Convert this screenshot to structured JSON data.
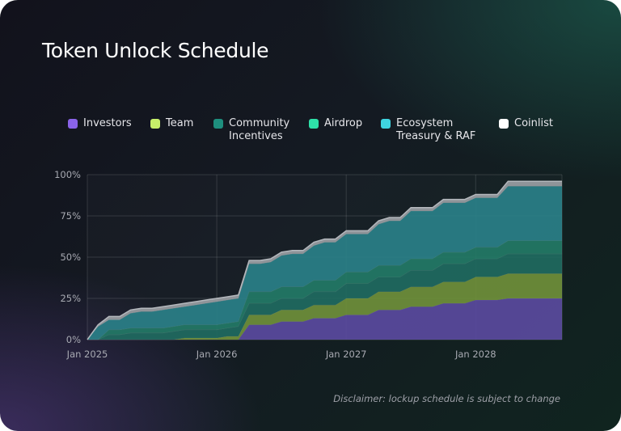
{
  "title": "Token Unlock Schedule",
  "disclaimer": "Disclaimer: lockup schedule is subject to change",
  "legend": [
    {
      "label": "Investors",
      "color": "#8a63e8"
    },
    {
      "label": "Team",
      "color": "#c6ef6a"
    },
    {
      "label": "Community\nIncentives",
      "color": "#1e8f7e"
    },
    {
      "label": "Airdrop",
      "color": "#2ee0a8"
    },
    {
      "label": "Ecosystem\nTreasury & RAF",
      "color": "#3fd4e0"
    },
    {
      "label": "Coinlist",
      "color": "#ffffff"
    }
  ],
  "chart_data": {
    "type": "area",
    "stacked": true,
    "x_unit": "months since Jan 2025",
    "x": [
      0,
      1,
      2,
      3,
      4,
      5,
      6,
      7,
      8,
      9,
      10,
      11,
      12,
      13,
      14,
      15,
      16,
      17,
      18,
      19,
      20,
      21,
      22,
      23,
      24,
      25,
      26,
      27,
      28,
      29,
      30,
      31,
      32,
      33,
      34,
      35,
      36,
      37,
      38,
      39,
      40,
      41,
      42,
      43,
      44
    ],
    "x_ticks": [
      "Jan 2025",
      "Jan 2026",
      "Jan 2027",
      "Jan 2028"
    ],
    "x_tick_values": [
      0,
      12,
      24,
      36
    ],
    "y_ticks": [
      "0%",
      "25%",
      "50%",
      "75%",
      "100%"
    ],
    "ylim": [
      0,
      100
    ],
    "grid": true,
    "series": [
      {
        "name": "Investors",
        "color": "#5a4a9e",
        "values": [
          0,
          0,
          0,
          0,
          0,
          0,
          0,
          0,
          0,
          0,
          0,
          0,
          0,
          0,
          0,
          9,
          9,
          9,
          11,
          11,
          11,
          13,
          13,
          13,
          15,
          15,
          15,
          18,
          18,
          18,
          20,
          20,
          20,
          22,
          22,
          22,
          24,
          24,
          24,
          25,
          25,
          25,
          25,
          25,
          25
        ]
      },
      {
        "name": "Team",
        "color": "#6f8f3a",
        "values": [
          0,
          0,
          0,
          0,
          0,
          0,
          0,
          0,
          0,
          1,
          1,
          1,
          1,
          2,
          2,
          6,
          6,
          6,
          7,
          7,
          7,
          8,
          8,
          8,
          10,
          10,
          10,
          11,
          11,
          11,
          12,
          12,
          12,
          13,
          13,
          13,
          14,
          14,
          14,
          15,
          15,
          15,
          15,
          15,
          15
        ]
      },
      {
        "name": "Community Incentives",
        "color": "#1f6a60",
        "values": [
          0,
          0,
          3,
          3,
          4,
          4,
          4,
          4,
          5,
          5,
          5,
          5,
          5,
          5,
          6,
          7,
          7,
          7,
          7,
          7,
          7,
          8,
          8,
          8,
          9,
          9,
          9,
          9,
          9,
          9,
          10,
          10,
          10,
          11,
          11,
          11,
          11,
          11,
          11,
          12,
          12,
          12,
          12,
          12,
          12
        ]
      },
      {
        "name": "Airdrop",
        "color": "#237a66",
        "values": [
          0,
          0,
          3,
          3,
          3,
          3,
          3,
          3,
          3,
          3,
          3,
          3,
          3,
          3,
          3,
          7,
          7,
          7,
          7,
          7,
          7,
          7,
          7,
          7,
          7,
          7,
          7,
          7,
          7,
          7,
          7,
          7,
          7,
          7,
          7,
          7,
          7,
          7,
          7,
          8,
          8,
          8,
          8,
          8,
          8
        ]
      },
      {
        "name": "Ecosystem Treasury & RAF",
        "color": "#2a8088",
        "values": [
          0,
          8,
          6,
          6,
          9,
          10,
          10,
          11,
          11,
          11,
          12,
          13,
          14,
          14,
          14,
          17,
          17,
          18,
          19,
          20,
          20,
          21,
          23,
          23,
          23,
          23,
          23,
          25,
          27,
          27,
          29,
          29,
          29,
          30,
          30,
          30,
          30,
          30,
          30,
          33,
          33,
          33,
          33,
          33,
          33
        ]
      },
      {
        "name": "Coinlist",
        "color": "#9a9ea3",
        "values": [
          0,
          1,
          2,
          2,
          2,
          2,
          2,
          2,
          2,
          2,
          2,
          2,
          2,
          2,
          2,
          2,
          2,
          2,
          2,
          2,
          2,
          2,
          2,
          2,
          2,
          2,
          2,
          2,
          2,
          2,
          2,
          2,
          2,
          2,
          2,
          2,
          2,
          2,
          2,
          3,
          3,
          3,
          3,
          3,
          3
        ]
      }
    ]
  }
}
